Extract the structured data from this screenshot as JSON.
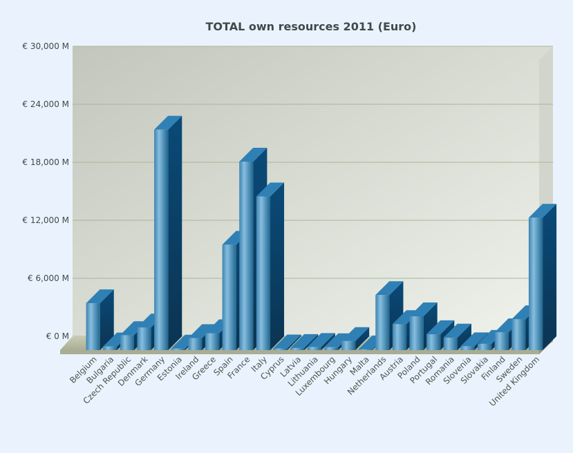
{
  "chart_data": {
    "type": "bar",
    "title": "TOTAL own resources 2011 (Euro)",
    "ylim": [
      0,
      30000
    ],
    "yticks": [
      0,
      6000,
      12000,
      18000,
      24000,
      30000
    ],
    "ytick_labels": [
      "€ 0 M",
      "€ 6,000 M",
      "€ 12,000 M",
      "€ 18,000 M",
      "€ 24,000 M",
      "€ 30,000 M"
    ],
    "categories": [
      "Belgium",
      "Bulgaria",
      "Czech Republic",
      "Denmark",
      "Germany",
      "Estonia",
      "Ireland",
      "Greece",
      "Spain",
      "France",
      "Italy",
      "Cyprus",
      "Latvia",
      "Lithuania",
      "Luxembourg",
      "Hungary",
      "Malta",
      "Netherlands",
      "Austria",
      "Poland",
      "Portugal",
      "Romania",
      "Slovenia",
      "Slovakia",
      "Finland",
      "Sweden",
      "United Kingdom"
    ],
    "values": [
      4850,
      380,
      1550,
      2350,
      22800,
      160,
      1250,
      1750,
      10900,
      19500,
      15900,
      180,
      220,
      330,
      300,
      950,
      80,
      5700,
      2700,
      3500,
      1650,
      1300,
      400,
      650,
      1850,
      3200,
      13700
    ],
    "grid": true,
    "legend": "none",
    "colors": {
      "bar_front_light": "#7ab4d8",
      "bar_front_dark": "#1d5e88",
      "bar_top": "#2f80b5",
      "bar_side": "#0d4770",
      "plot_bg": "#c9ccc3",
      "grid": "#a9b59a",
      "floor": "#bfc3ad",
      "page_bg": "#eaf3fd"
    }
  }
}
